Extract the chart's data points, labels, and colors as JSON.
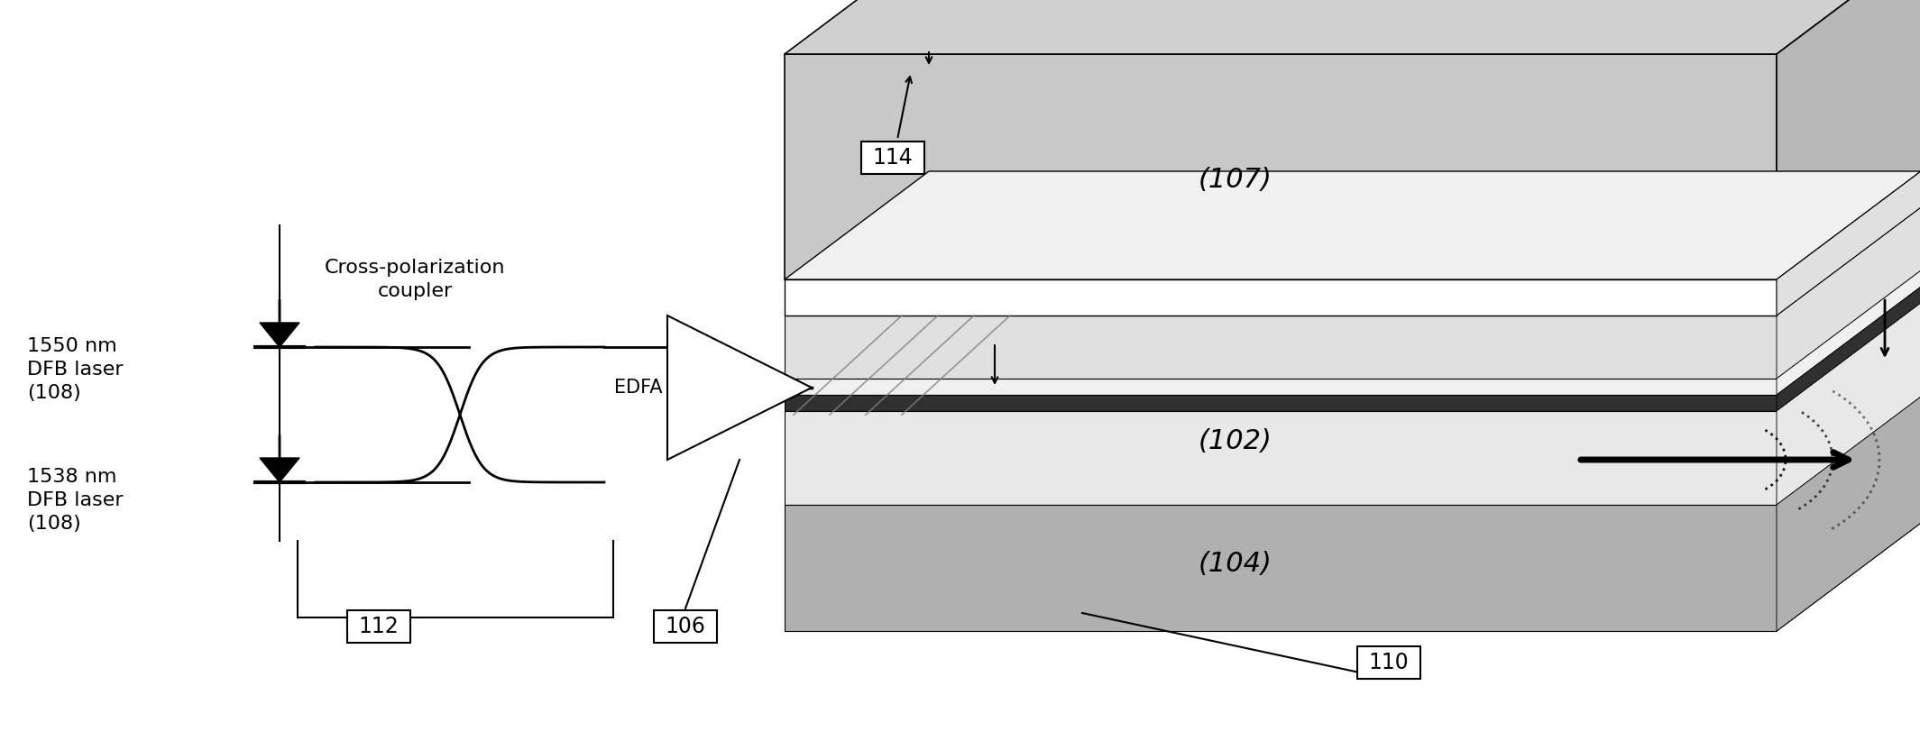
{
  "bg_color": "#ffffff",
  "text_color": "#000000",
  "label_114": "114",
  "label_107": "(107)",
  "label_102": "(102)",
  "label_104": "(104)",
  "label_106": "106",
  "label_110": "110",
  "label_112": "112",
  "label_edfa": "EDFA",
  "label_1550": "1550 nm\nDFB laser\n(108)",
  "label_1538": "1538 nm\nDFB laser\n(108)",
  "label_coupler": "Cross-polarization\ncoupler",
  "slab_color_top": "#b0b0b0",
  "slab_color_mid_light": "#d8d8d8",
  "slab_color_active": "#ffffff",
  "slab_color_dark": "#404040",
  "slab_color_bottom": "#a0a0a0"
}
